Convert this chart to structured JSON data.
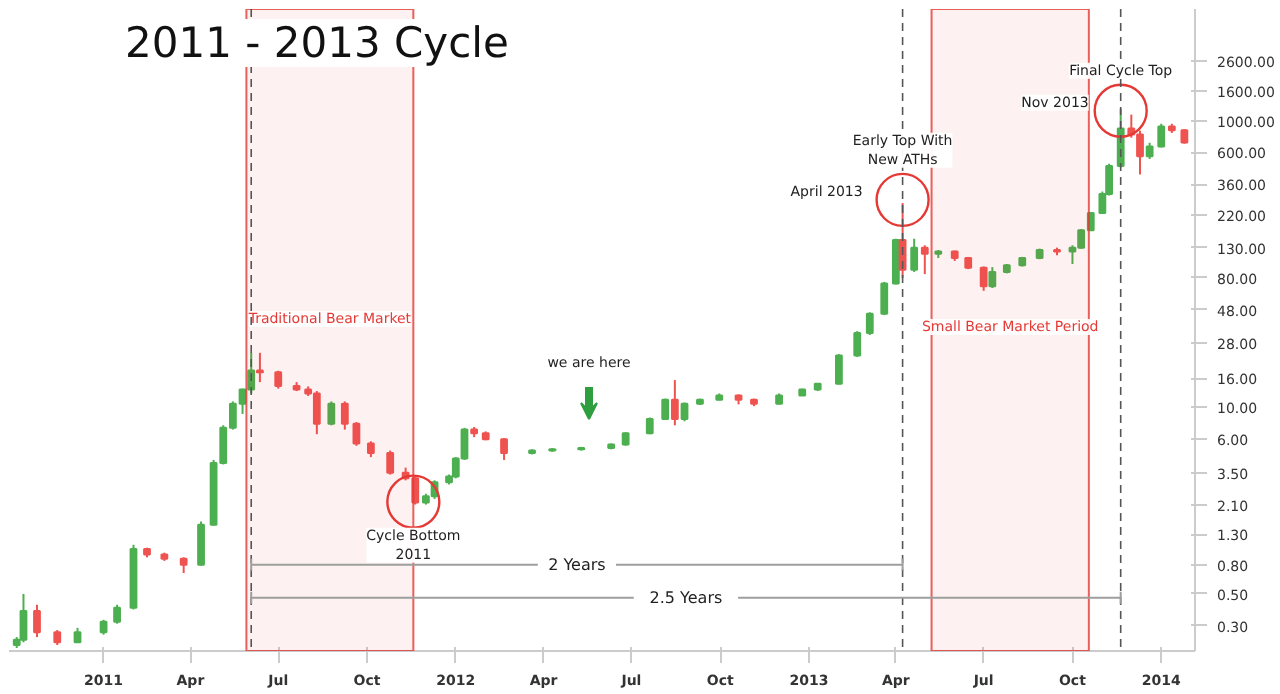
{
  "chart_data": {
    "type": "candlestick",
    "title": "2011 - 2013 Cycle",
    "x": [
      "2010-10-03",
      "2010-10-10",
      "2010-10-24",
      "2010-11-14",
      "2010-12-05",
      "2011-01-01",
      "2011-01-15",
      "2011-02-01",
      "2011-02-15",
      "2011-03-05",
      "2011-03-25",
      "2011-04-12",
      "2011-04-25",
      "2011-05-05",
      "2011-05-15",
      "2011-05-25",
      "2011-06-03",
      "2011-06-12",
      "2011-07-01",
      "2011-07-20",
      "2011-08-01",
      "2011-08-10",
      "2011-08-25",
      "2011-09-08",
      "2011-09-20",
      "2011-10-05",
      "2011-10-25",
      "2011-11-10",
      "2011-11-20",
      "2011-12-01",
      "2011-12-10",
      "2011-12-25",
      "2012-01-01",
      "2012-01-10",
      "2012-01-20",
      "2012-02-01",
      "2012-02-20",
      "2012-03-20",
      "2012-04-10",
      "2012-05-10",
      "2012-06-10",
      "2012-06-25",
      "2012-07-20",
      "2012-08-05",
      "2012-08-15",
      "2012-08-25",
      "2012-09-10",
      "2012-09-30",
      "2012-10-20",
      "2012-11-05",
      "2012-12-01",
      "2012-12-25",
      "2013-01-10",
      "2013-02-01",
      "2013-02-20",
      "2013-03-05",
      "2013-03-20",
      "2013-04-01",
      "2013-04-08",
      "2013-04-20",
      "2013-05-01",
      "2013-05-15",
      "2013-06-01",
      "2013-06-15",
      "2013-07-01",
      "2013-07-10",
      "2013-07-25",
      "2013-08-10",
      "2013-08-28",
      "2013-09-15",
      "2013-10-01",
      "2013-10-10",
      "2013-10-20",
      "2013-11-01",
      "2013-11-08",
      "2013-11-20",
      "2013-12-01",
      "2013-12-10",
      "2013-12-20",
      "2014-01-01",
      "2014-01-12",
      "2014-01-25"
    ],
    "ohlc": [
      [
        0.22,
        0.25,
        0.21,
        0.24
      ],
      [
        0.24,
        0.5,
        0.23,
        0.38
      ],
      [
        0.38,
        0.42,
        0.25,
        0.27
      ],
      [
        0.27,
        0.28,
        0.22,
        0.23
      ],
      [
        0.23,
        0.29,
        0.23,
        0.27
      ],
      [
        0.27,
        0.33,
        0.26,
        0.32
      ],
      [
        0.32,
        0.42,
        0.31,
        0.4
      ],
      [
        0.4,
        1.1,
        0.39,
        1.03
      ],
      [
        1.03,
        1.05,
        0.9,
        0.94
      ],
      [
        0.94,
        0.97,
        0.85,
        0.88
      ],
      [
        0.88,
        0.9,
        0.7,
        0.8
      ],
      [
        0.8,
        1.6,
        0.79,
        1.52
      ],
      [
        1.52,
        4.3,
        1.5,
        4.1
      ],
      [
        4.1,
        7.5,
        4.0,
        7.2
      ],
      [
        7.2,
        11,
        7.0,
        10.6
      ],
      [
        10.6,
        13.5,
        9,
        13.3
      ],
      [
        13.3,
        24,
        12.5,
        18.1
      ],
      [
        18.1,
        24,
        15,
        17.6
      ],
      [
        17.6,
        18,
        13.5,
        14.1
      ],
      [
        14.1,
        15,
        13,
        13.3
      ],
      [
        13.3,
        14,
        12,
        12.5
      ],
      [
        12.5,
        13,
        6.5,
        7.7
      ],
      [
        7.7,
        11,
        7.5,
        10.6
      ],
      [
        10.6,
        11,
        7,
        7.7
      ],
      [
        7.7,
        7.9,
        5.4,
        5.6
      ],
      [
        5.6,
        5.8,
        4.5,
        4.8
      ],
      [
        4.8,
        5,
        3.4,
        3.5
      ],
      [
        3.5,
        3.8,
        3.1,
        3.2
      ],
      [
        3.2,
        3.3,
        2.1,
        2.17
      ],
      [
        2.17,
        2.5,
        2.1,
        2.4
      ],
      [
        2.4,
        3.1,
        2.3,
        3.0
      ],
      [
        3.0,
        3.4,
        2.9,
        3.3
      ],
      [
        3.3,
        4.5,
        3.2,
        4.4
      ],
      [
        4.4,
        7.2,
        4.3,
        7.0
      ],
      [
        7.0,
        7.3,
        6.2,
        6.6
      ],
      [
        6.6,
        6.8,
        5.9,
        6.0
      ],
      [
        6.0,
        6.1,
        4.3,
        4.8
      ],
      [
        4.8,
        5.1,
        4.7,
        5.0
      ],
      [
        5.0,
        5.2,
        4.9,
        5.1
      ],
      [
        5.1,
        5.3,
        5.0,
        5.2
      ],
      [
        5.2,
        5.6,
        5.1,
        5.5
      ],
      [
        5.5,
        6.7,
        5.4,
        6.6
      ],
      [
        6.6,
        8.5,
        6.5,
        8.3
      ],
      [
        8.3,
        11.5,
        8.2,
        11.3
      ],
      [
        11.3,
        15.5,
        7.5,
        8.3
      ],
      [
        8.3,
        10.8,
        8.0,
        10.6
      ],
      [
        10.6,
        11.5,
        10.4,
        11.3
      ],
      [
        11.3,
        12.5,
        11.2,
        12.1
      ],
      [
        12.1,
        12.3,
        10.5,
        11.3
      ],
      [
        11.3,
        11.5,
        10.2,
        10.6
      ],
      [
        10.6,
        12.5,
        10.5,
        12.1
      ],
      [
        12.1,
        13.5,
        12,
        13.3
      ],
      [
        13.3,
        14.8,
        13,
        14.6
      ],
      [
        14.6,
        23.5,
        14.5,
        23
      ],
      [
        23,
        34,
        22.5,
        33
      ],
      [
        33,
        46,
        32,
        45
      ],
      [
        45,
        75,
        44,
        73
      ],
      [
        73,
        150,
        72,
        147
      ],
      [
        147,
        266,
        80,
        91
      ],
      [
        91,
        150,
        88,
        130
      ],
      [
        130,
        135,
        85,
        118
      ],
      [
        118,
        125,
        110,
        122
      ],
      [
        122,
        124,
        105,
        110
      ],
      [
        110,
        112,
        92,
        94
      ],
      [
        94,
        96,
        65,
        70
      ],
      [
        70,
        95,
        68,
        88
      ],
      [
        88,
        100,
        86,
        98
      ],
      [
        98,
        112,
        96,
        110
      ],
      [
        110,
        128,
        108,
        125
      ],
      [
        125,
        130,
        115,
        122
      ],
      [
        122,
        135,
        100,
        130
      ],
      [
        130,
        175,
        128,
        172
      ],
      [
        172,
        230,
        170,
        227
      ],
      [
        227,
        320,
        225,
        308
      ],
      [
        308,
        500,
        300,
        482
      ],
      [
        482,
        1207,
        470,
        882
      ],
      [
        882,
        1100,
        760,
        800
      ],
      [
        800,
        850,
        421,
        563
      ],
      [
        563,
        700,
        540,
        659
      ],
      [
        659,
        950,
        650,
        910
      ],
      [
        910,
        950,
        820,
        855
      ],
      [
        855,
        870,
        690,
        702
      ]
    ],
    "colors": [
      "#4caf50",
      "#4caf50",
      "#ef5350",
      "#ef5350",
      "#4caf50",
      "#4caf50",
      "#4caf50",
      "#4caf50",
      "#ef5350",
      "#ef5350",
      "#ef5350",
      "#4caf50",
      "#4caf50",
      "#4caf50",
      "#4caf50",
      "#4caf50",
      "#4caf50",
      "#ef5350",
      "#ef5350",
      "#ef5350",
      "#ef5350",
      "#ef5350",
      "#4caf50",
      "#ef5350",
      "#ef5350",
      "#ef5350",
      "#ef5350",
      "#ef5350",
      "#ef5350",
      "#4caf50",
      "#4caf50",
      "#4caf50",
      "#4caf50",
      "#4caf50",
      "#ef5350",
      "#ef5350",
      "#ef5350",
      "#4caf50",
      "#4caf50",
      "#4caf50",
      "#4caf50",
      "#4caf50",
      "#4caf50",
      "#4caf50",
      "#ef5350",
      "#4caf50",
      "#4caf50",
      "#4caf50",
      "#ef5350",
      "#ef5350",
      "#4caf50",
      "#4caf50",
      "#4caf50",
      "#4caf50",
      "#4caf50",
      "#4caf50",
      "#4caf50",
      "#4caf50",
      "#ef5350",
      "#4caf50",
      "#ef5350",
      "#4caf50",
      "#ef5350",
      "#ef5350",
      "#ef5350",
      "#4caf50",
      "#4caf50",
      "#4caf50",
      "#4caf50",
      "#ef5350",
      "#4caf50",
      "#4caf50",
      "#4caf50",
      "#4caf50",
      "#4caf50",
      "#4caf50",
      "#ef5350",
      "#ef5350",
      "#4caf50",
      "#4caf50",
      "#ef5350",
      "#ef5350"
    ],
    "xlim": [
      "2010-09-25",
      "2014-02-05"
    ],
    "xticks": [
      {
        "value": "2011-01-01",
        "label": "2011"
      },
      {
        "value": "2011-04-01",
        "label": "Apr"
      },
      {
        "value": "2011-07-01",
        "label": "Jul"
      },
      {
        "value": "2011-10-01",
        "label": "Oct"
      },
      {
        "value": "2012-01-01",
        "label": "2012"
      },
      {
        "value": "2012-04-01",
        "label": "Apr"
      },
      {
        "value": "2012-07-01",
        "label": "Jul"
      },
      {
        "value": "2012-10-01",
        "label": "Oct"
      },
      {
        "value": "2013-01-01",
        "label": "2013"
      },
      {
        "value": "2013-04-01",
        "label": "Apr"
      },
      {
        "value": "2013-07-01",
        "label": "Jul"
      },
      {
        "value": "2013-10-01",
        "label": "Oct"
      },
      {
        "value": "2014-01-01",
        "label": "2014"
      }
    ],
    "ylim": [
      0.2,
      6000
    ],
    "log": true,
    "yticks": [
      {
        "value": 0.3,
        "label": "0.30"
      },
      {
        "value": 0.5,
        "label": "0.50"
      },
      {
        "value": 0.8,
        "label": "0.80"
      },
      {
        "value": 1.3,
        "label": "1.30"
      },
      {
        "value": 2.1,
        "label": "2.10"
      },
      {
        "value": 3.5,
        "label": "3.50"
      },
      {
        "value": 6,
        "label": "6.00"
      },
      {
        "value": 10,
        "label": "10.00"
      },
      {
        "value": 16,
        "label": "16.00"
      },
      {
        "value": 28,
        "label": "28.00"
      },
      {
        "value": 48,
        "label": "48.00"
      },
      {
        "value": 80,
        "label": "80.00"
      },
      {
        "value": 130,
        "label": "130.00"
      },
      {
        "value": 220,
        "label": "220.00"
      },
      {
        "value": 360,
        "label": "360.00"
      },
      {
        "value": 600,
        "label": "600.00"
      },
      {
        "value": 1000,
        "label": "1000.00"
      },
      {
        "value": 1600,
        "label": "1600.00"
      },
      {
        "value": 2600,
        "label": "2600.00"
      }
    ],
    "grid": false,
    "ref_lines": [
      {
        "axis": "x",
        "value": "2011-06-03",
        "color": "#555555",
        "line_style": "dashed"
      },
      {
        "axis": "x",
        "value": "2013-04-08",
        "color": "#555555",
        "line_style": "dashed"
      },
      {
        "axis": "x",
        "value": "2013-11-20",
        "color": "#555555",
        "line_style": "dashed"
      }
    ],
    "bands": [
      {
        "axis": "x",
        "from": "2011-05-29",
        "to": "2011-11-18",
        "label": "Traditional Bear Market",
        "color": "#e53935"
      },
      {
        "axis": "x",
        "from": "2013-05-08",
        "to": "2013-10-18",
        "label": "Small Bear Market Period",
        "color": "#e53935"
      }
    ],
    "annotations": [
      {
        "text": "Cycle Bottom\n2011",
        "x": "2011-11-18",
        "y": 2.2
      },
      "we are here",
      {
        "text": "April 2013",
        "x": "2013-04-08",
        "y": 280
      },
      {
        "text": "Early Top With\nNew ATHs",
        "x": "2013-04-08",
        "y": 280
      },
      {
        "text": "Nov 2013",
        "x": "2013-11-20",
        "y": 1170
      },
      {
        "text": "Final Cycle Top",
        "x": "2013-11-20",
        "y": 1170
      },
      {
        "text": "2 Years",
        "x": "2013-04-08",
        "y": 0.8
      },
      {
        "text": "2.5 Years",
        "x": "2013-11-20",
        "y": 0.47
      }
    ]
  }
}
